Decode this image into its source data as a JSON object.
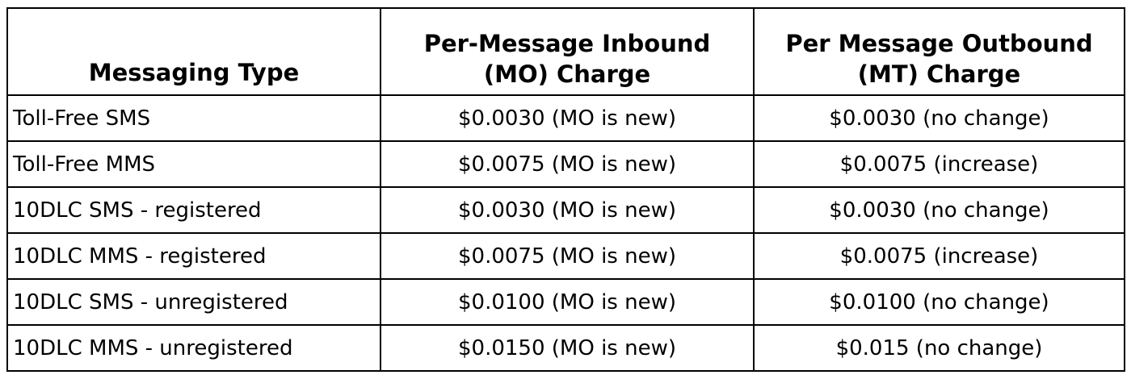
{
  "table": {
    "headers": [
      {
        "lines": [
          "Messaging Type"
        ]
      },
      {
        "lines": [
          "Per-Message Inbound",
          "(MO) Charge"
        ]
      },
      {
        "lines": [
          "Per Message Outbound",
          "(MT) Charge"
        ]
      }
    ],
    "rows": [
      [
        "Toll-Free SMS",
        "$0.0030 (MO is new)",
        "$0.0030 (no change)"
      ],
      [
        "Toll-Free MMS",
        "$0.0075 (MO is new)",
        "$0.0075 (increase)"
      ],
      [
        "10DLC SMS - registered",
        "$0.0030 (MO is new)",
        "$0.0030 (no change)"
      ],
      [
        "10DLC MMS - registered",
        "$0.0075 (MO is new)",
        "$0.0075 (increase)"
      ],
      [
        "10DLC SMS - unregistered",
        "$0.0100 (MO is new)",
        "$0.0100 (no change)"
      ],
      [
        "10DLC MMS - unregistered",
        "$0.0150 (MO is new)",
        "$0.015 (no change)"
      ]
    ]
  }
}
